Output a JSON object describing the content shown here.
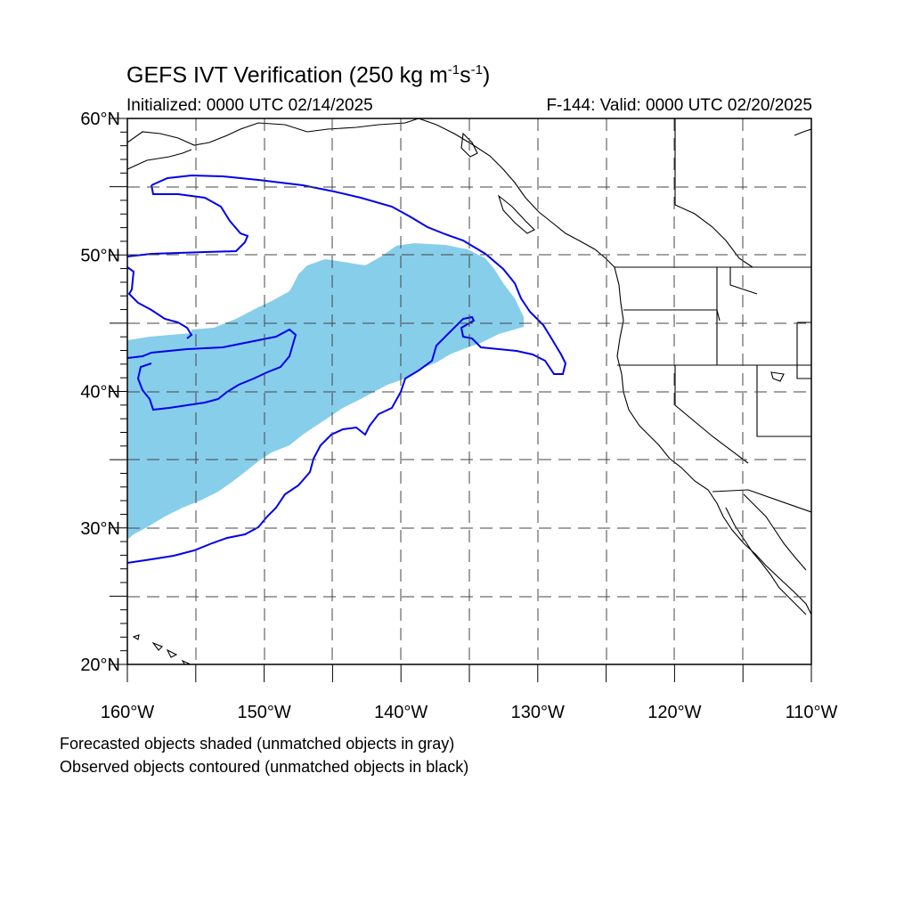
{
  "title": {
    "main": "GEFS IVT Verification (250 kg m",
    "exp1": "-1",
    "mid": "s",
    "exp2": "-1",
    "tail": ")"
  },
  "subtitle": {
    "initialized": "Initialized: 0000 UTC 02/14/2025",
    "valid": "F-144: Valid: 0000 UTC 02/20/2025"
  },
  "footnotes": [
    "Forecasted objects shaded (unmatched objects in gray)",
    "Observed objects contoured (unmatched objects in black)"
  ],
  "map": {
    "lon_range": [
      -160,
      -110
    ],
    "lat_range": [
      20,
      60
    ],
    "lat_labels": [
      {
        "lat": 60,
        "text": "60°N"
      },
      {
        "lat": 50,
        "text": "50°N"
      },
      {
        "lat": 40,
        "text": "40°N"
      },
      {
        "lat": 30,
        "text": "30°N"
      },
      {
        "lat": 20,
        "text": "20°N"
      }
    ],
    "lon_labels": [
      {
        "lon": -160,
        "text": "160°W"
      },
      {
        "lon": -150,
        "text": "150°W"
      },
      {
        "lon": -140,
        "text": "140°W"
      },
      {
        "lon": -130,
        "text": "130°W"
      },
      {
        "lon": -120,
        "text": "120°W"
      },
      {
        "lon": -110,
        "text": "110°W"
      }
    ],
    "grid_dashed": true,
    "forecast_color": "#87ceeb",
    "observed_color": "#0000ee",
    "land_outline_color": "#000000"
  }
}
